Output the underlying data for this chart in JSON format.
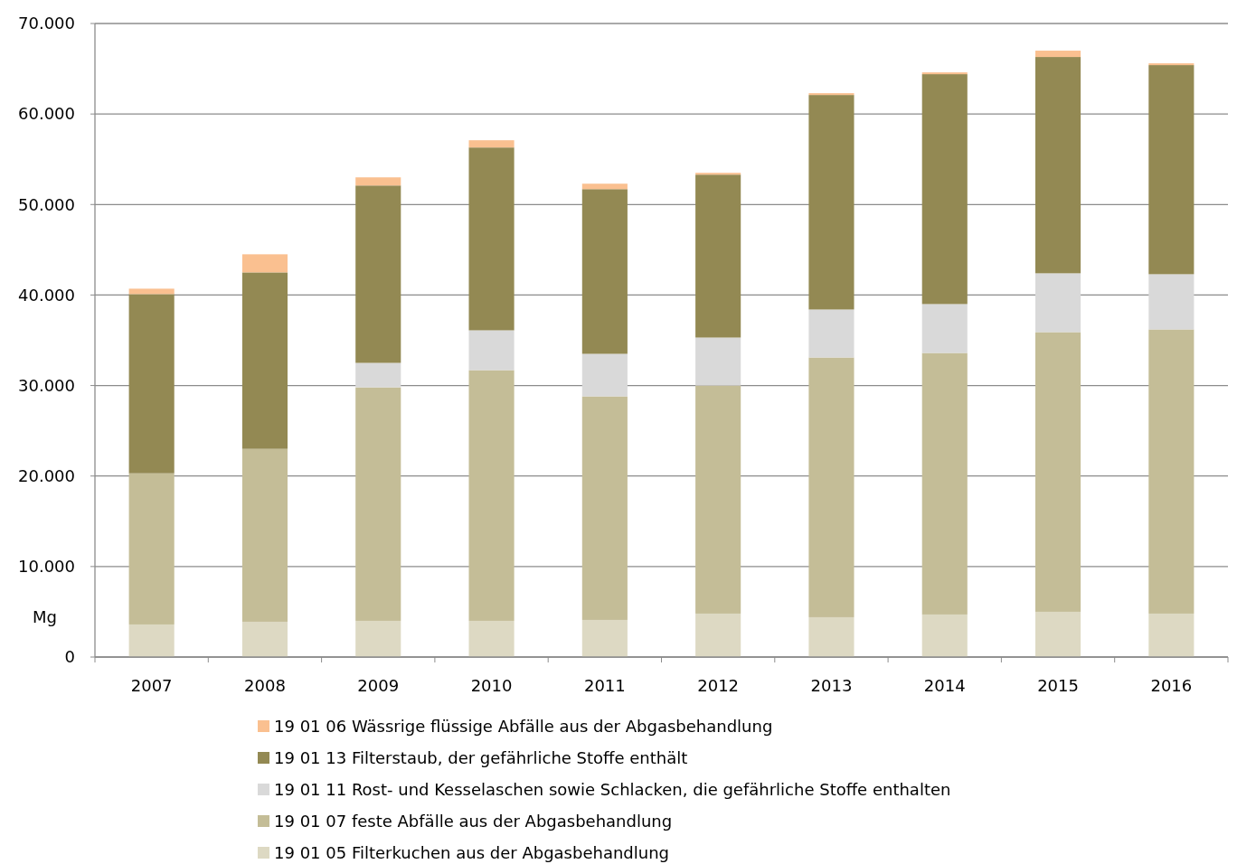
{
  "chart_data": {
    "type": "bar",
    "stacked": true,
    "ylabel": "Mg",
    "categories": [
      "2007",
      "2008",
      "2009",
      "2010",
      "2011",
      "2012",
      "2013",
      "2014",
      "2015",
      "2016"
    ],
    "series": [
      {
        "name": "19 01 05 Filterkuchen aus der Abgasbehandlung",
        "color": "#ddd9c3",
        "values": [
          3600,
          3900,
          4000,
          4000,
          4100,
          4800,
          4400,
          4700,
          5000,
          4800
        ]
      },
      {
        "name": "19 01 07 feste Abfälle aus der Abgasbehandlung",
        "color": "#c4bd97",
        "values": [
          16700,
          19100,
          25800,
          27700,
          24700,
          25200,
          28700,
          28900,
          30900,
          31400
        ]
      },
      {
        "name": "19 01 11 Rost- und Kesselaschen sowie Schlacken, die gefährliche Stoffe enthalten",
        "color": "#d9d9d9",
        "values": [
          0,
          0,
          2700,
          4400,
          4700,
          5300,
          5300,
          5400,
          6500,
          6100
        ]
      },
      {
        "name": "19 01 13 Filterstaub, der gefährliche Stoffe enthält",
        "color": "#938953",
        "values": [
          19800,
          19500,
          19600,
          20200,
          18200,
          18000,
          23700,
          25400,
          23900,
          23100
        ]
      },
      {
        "name": "19 01 06 Wässrige flüssige Abfälle aus der Abgasbehandlung",
        "color": "#fac090",
        "values": [
          600,
          2000,
          900,
          800,
          600,
          200,
          200,
          200,
          700,
          200
        ]
      }
    ],
    "ylim": [
      0,
      70000
    ],
    "yticks": [
      {
        "value": 0,
        "label": "0"
      },
      {
        "value": 10000,
        "label": "10.000"
      },
      {
        "value": 20000,
        "label": "20.000"
      },
      {
        "value": 30000,
        "label": "30.000"
      },
      {
        "value": 40000,
        "label": "40.000"
      },
      {
        "value": 50000,
        "label": "50.000"
      },
      {
        "value": 60000,
        "label": "60.000"
      },
      {
        "value": 70000,
        "label": "70.000"
      }
    ],
    "grid": "y",
    "legend": "bottom"
  }
}
